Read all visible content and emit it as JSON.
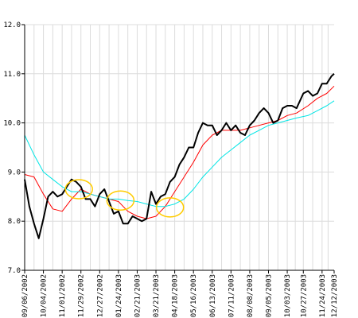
{
  "chart_data": {
    "type": "line",
    "title": "",
    "xlabel": "",
    "ylabel": "",
    "ylim": [
      7.0,
      12.0
    ],
    "grid": true,
    "legend": "none",
    "y_ticks": [
      "7.0",
      "8.0",
      "9.0",
      "10.0",
      "11.0",
      "12.0"
    ],
    "x_tick_labels": [
      "09/06/2002",
      "10/04/2002",
      "11/01/2002",
      "11/29/2002",
      "12/27/2002",
      "01/24/2003",
      "02/21/2003",
      "03/21/2003",
      "04/18/2003",
      "05/16/2003",
      "06/13/2003",
      "07/11/2003",
      "08/08/2003",
      "09/05/2003",
      "10/03/2003",
      "10/27/2003",
      "11/24/2003",
      "12/12/2003"
    ],
    "series": [
      {
        "color": "#000000",
        "style": "thick",
        "x": [
          "2002-09-06",
          "2002-09-13",
          "2002-09-20",
          "2002-09-27",
          "2002-10-04",
          "2002-10-11",
          "2002-10-18",
          "2002-10-25",
          "2002-11-01",
          "2002-11-08",
          "2002-11-15",
          "2002-11-22",
          "2002-11-29",
          "2002-12-06",
          "2002-12-13",
          "2002-12-20",
          "2002-12-27",
          "2003-01-03",
          "2003-01-10",
          "2003-01-17",
          "2003-01-24",
          "2003-01-31",
          "2003-02-07",
          "2003-02-14",
          "2003-02-21",
          "2003-02-28",
          "2003-03-07",
          "2003-03-14",
          "2003-03-21",
          "2003-03-28",
          "2003-04-04",
          "2003-04-11",
          "2003-04-18",
          "2003-04-25",
          "2003-05-02",
          "2003-05-09",
          "2003-05-16",
          "2003-05-23",
          "2003-05-30",
          "2003-06-06",
          "2003-06-13",
          "2003-06-20",
          "2003-06-27",
          "2003-07-04",
          "2003-07-11",
          "2003-07-18",
          "2003-07-25",
          "2003-08-01",
          "2003-08-08",
          "2003-08-15",
          "2003-08-22",
          "2003-08-29",
          "2003-09-05",
          "2003-09-12",
          "2003-09-19",
          "2003-09-26",
          "2003-10-03",
          "2003-10-10",
          "2003-10-17",
          "2003-10-27",
          "2003-11-03",
          "2003-11-10",
          "2003-11-17",
          "2003-11-24",
          "2003-12-01",
          "2003-12-08",
          "2003-12-12"
        ],
        "values": [
          8.85,
          8.3,
          7.95,
          7.65,
          8.05,
          8.5,
          8.6,
          8.5,
          8.55,
          8.7,
          8.85,
          8.8,
          8.7,
          8.45,
          8.45,
          8.3,
          8.55,
          8.65,
          8.4,
          8.15,
          8.2,
          7.95,
          7.95,
          8.1,
          8.05,
          8.0,
          8.05,
          8.6,
          8.35,
          8.5,
          8.55,
          8.8,
          8.9,
          9.15,
          9.3,
          9.5,
          9.5,
          9.8,
          10.0,
          9.95,
          9.95,
          9.75,
          9.85,
          10.0,
          9.85,
          9.95,
          9.8,
          9.75,
          9.95,
          10.05,
          10.2,
          10.3,
          10.2,
          10.0,
          10.05,
          10.3,
          10.35,
          10.35,
          10.3,
          10.6,
          10.65,
          10.55,
          10.6,
          10.8,
          10.8,
          10.95,
          11.0
        ]
      },
      {
        "color": "#ff0000",
        "style": "thin",
        "x": [
          "2002-09-06",
          "2002-09-20",
          "2002-10-04",
          "2002-10-18",
          "2002-11-01",
          "2002-11-15",
          "2002-11-29",
          "2002-12-13",
          "2002-12-27",
          "2003-01-10",
          "2003-01-24",
          "2003-02-07",
          "2003-02-21",
          "2003-03-07",
          "2003-03-21",
          "2003-04-04",
          "2003-04-18",
          "2003-05-02",
          "2003-05-16",
          "2003-05-30",
          "2003-06-13",
          "2003-06-27",
          "2003-07-11",
          "2003-07-25",
          "2003-08-08",
          "2003-08-22",
          "2003-09-05",
          "2003-09-19",
          "2003-10-03",
          "2003-10-17",
          "2003-11-03",
          "2003-11-17",
          "2003-12-01",
          "2003-12-12"
        ],
        "values": [
          8.95,
          8.9,
          8.55,
          8.25,
          8.2,
          8.45,
          8.65,
          8.55,
          8.5,
          8.45,
          8.4,
          8.2,
          8.1,
          8.05,
          8.1,
          8.3,
          8.6,
          8.9,
          9.2,
          9.55,
          9.75,
          9.85,
          9.85,
          9.85,
          9.9,
          9.95,
          10.0,
          10.05,
          10.15,
          10.2,
          10.35,
          10.5,
          10.6,
          10.75
        ]
      },
      {
        "color": "#00e5e5",
        "style": "thin",
        "x": [
          "2002-09-06",
          "2002-09-20",
          "2002-10-04",
          "2002-10-18",
          "2002-11-01",
          "2002-11-15",
          "2002-11-29",
          "2002-12-13",
          "2002-12-27",
          "2003-01-10",
          "2003-01-24",
          "2003-02-07",
          "2003-02-21",
          "2003-03-07",
          "2003-03-21",
          "2003-04-04",
          "2003-04-18",
          "2003-05-02",
          "2003-05-16",
          "2003-05-30",
          "2003-06-13",
          "2003-06-27",
          "2003-07-11",
          "2003-07-25",
          "2003-08-08",
          "2003-08-22",
          "2003-09-05",
          "2003-09-19",
          "2003-10-03",
          "2003-10-17",
          "2003-11-03",
          "2003-11-17",
          "2003-12-01",
          "2003-12-12"
        ],
        "values": [
          9.75,
          9.35,
          9.0,
          8.85,
          8.7,
          8.6,
          8.6,
          8.55,
          8.5,
          8.45,
          8.45,
          8.42,
          8.4,
          8.35,
          8.3,
          8.3,
          8.35,
          8.45,
          8.65,
          8.9,
          9.1,
          9.3,
          9.45,
          9.6,
          9.75,
          9.85,
          9.95,
          10.0,
          10.05,
          10.1,
          10.15,
          10.25,
          10.35,
          10.45
        ]
      }
    ],
    "annotations": [
      {
        "type": "ellipse",
        "color": "#ffcc00",
        "center_date": "2002-11-26",
        "center_value": 8.65
      },
      {
        "type": "ellipse",
        "color": "#ffcc00",
        "center_date": "2003-01-27",
        "center_value": 8.42
      },
      {
        "type": "ellipse",
        "color": "#ffcc00",
        "center_date": "2003-04-11",
        "center_value": 8.28
      }
    ]
  }
}
